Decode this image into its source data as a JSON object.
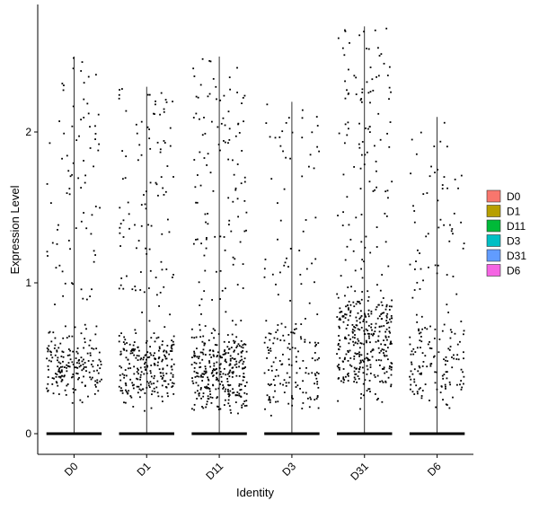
{
  "chart_data": {
    "type": "scatter",
    "subtype": "violin-jitter",
    "title": "",
    "xlabel": "Identity",
    "ylabel": "Expression Level",
    "ylim": [
      -0.1,
      2.8
    ],
    "yticks": [
      0,
      1,
      2
    ],
    "grid": false,
    "legend_placement": "right",
    "categories": [
      "D0",
      "D1",
      "D11",
      "D3",
      "D31",
      "D6"
    ],
    "colors": {
      "D0": "#F8766D",
      "D1": "#B79F00",
      "D11": "#00BA38",
      "D3": "#00BFC4",
      "D31": "#619CFF",
      "D6": "#F564E3"
    },
    "series": [
      {
        "name": "D0",
        "max": 2.5,
        "zero_fraction": 0.82,
        "nonzero_count": 260,
        "nonzero_median": 0.9,
        "dense_band": [
          0.3,
          0.6
        ]
      },
      {
        "name": "D1",
        "max": 2.3,
        "zero_fraction": 0.78,
        "nonzero_count": 330,
        "nonzero_median": 0.8,
        "dense_band": [
          0.25,
          0.6
        ]
      },
      {
        "name": "D11",
        "max": 2.5,
        "zero_fraction": 0.74,
        "nonzero_count": 420,
        "nonzero_median": 0.45,
        "dense_band": [
          0.2,
          0.6
        ]
      },
      {
        "name": "D3",
        "max": 2.2,
        "zero_fraction": 0.85,
        "nonzero_count": 190,
        "nonzero_median": 0.6,
        "dense_band": [
          0.2,
          0.7
        ]
      },
      {
        "name": "D31",
        "max": 2.7,
        "zero_fraction": 0.7,
        "nonzero_count": 440,
        "nonzero_median": 0.65,
        "dense_band": [
          0.35,
          0.9
        ]
      },
      {
        "name": "D6",
        "max": 2.1,
        "zero_fraction": 0.84,
        "nonzero_count": 190,
        "nonzero_median": 0.7,
        "dense_band": [
          0.25,
          0.7
        ]
      }
    ]
  }
}
